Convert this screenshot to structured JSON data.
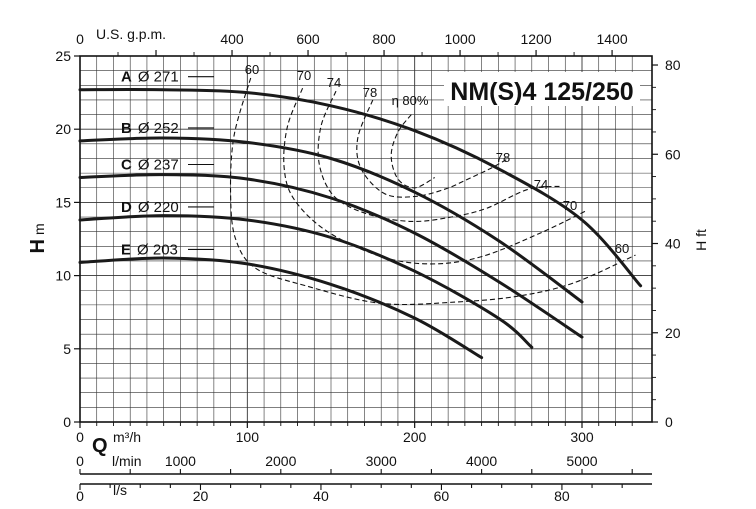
{
  "chart_data": {
    "type": "line",
    "title": "NM(S)4 125/250",
    "grid": true,
    "y_left": {
      "label": "H",
      "unit": "m",
      "ylim": [
        0,
        25
      ],
      "ticks": [
        0,
        5,
        10,
        15,
        20,
        25
      ]
    },
    "y_right": {
      "label": "H ft",
      "ticks": [
        0,
        20,
        40,
        60,
        80
      ]
    },
    "x_top": {
      "label": "U.S. g.p.m.",
      "ticks": [
        400,
        600,
        800,
        1000,
        1200,
        1400
      ]
    },
    "x_main": {
      "label": "Q",
      "unit": "m³/h",
      "xlim": [
        0,
        335
      ],
      "ticks": [
        0,
        100,
        200,
        300
      ]
    },
    "x_lmin": {
      "unit": "l/min",
      "ticks": [
        0,
        1000,
        2000,
        3000,
        4000,
        5000
      ]
    },
    "x_ls": {
      "unit": "l/s",
      "ticks": [
        0,
        20,
        40,
        60,
        80
      ]
    },
    "series": [
      {
        "name": "A",
        "diameter": "Ø 271",
        "x": [
          0,
          50,
          100,
          150,
          200,
          250,
          300,
          335
        ],
        "y": [
          22.7,
          22.7,
          22.5,
          21.6,
          19.9,
          17.3,
          13.8,
          9.3
        ]
      },
      {
        "name": "B",
        "diameter": "Ø 252",
        "x": [
          0,
          50,
          100,
          150,
          200,
          250,
          300
        ],
        "y": [
          19.2,
          19.4,
          19.1,
          18.0,
          15.7,
          12.4,
          8.2
        ]
      },
      {
        "name": "C",
        "diameter": "Ø 237",
        "x": [
          0,
          50,
          100,
          150,
          200,
          250,
          300
        ],
        "y": [
          16.7,
          16.9,
          16.6,
          15.3,
          12.9,
          9.6,
          5.8
        ]
      },
      {
        "name": "D",
        "diameter": "Ø 220",
        "x": [
          0,
          50,
          100,
          150,
          200,
          250,
          270
        ],
        "y": [
          13.8,
          14.1,
          13.8,
          12.6,
          10.3,
          7.1,
          5.1
        ]
      },
      {
        "name": "E",
        "diameter": "Ø 203",
        "x": [
          0,
          50,
          100,
          150,
          200,
          240
        ],
        "y": [
          10.9,
          11.2,
          10.8,
          9.4,
          7.1,
          4.4
        ]
      }
    ],
    "efficiency": [
      {
        "label": "60",
        "x": [
          102,
          92,
          90,
          93,
          105,
          135,
          180,
          225,
          262,
          295,
          332
        ],
        "y": [
          23.5,
          19.5,
          15.5,
          12.5,
          10.5,
          9.3,
          8.1,
          8.2,
          8.6,
          9.5,
          11.4
        ]
      },
      {
        "label": "70",
        "x": [
          133,
          124,
          122,
          128,
          148,
          180,
          210,
          240,
          275,
          302
        ],
        "y": [
          22.8,
          20.2,
          17.4,
          15.2,
          13.0,
          11.3,
          10.8,
          11.3,
          12.9,
          14.4
        ]
      },
      {
        "label": "74",
        "x": [
          153,
          144,
          143,
          152,
          172,
          198,
          222,
          243,
          268,
          288
        ],
        "y": [
          22.6,
          20.2,
          17.6,
          15.4,
          14.2,
          13.7,
          14.0,
          14.6,
          15.9,
          16.1
        ]
      },
      {
        "label": "78",
        "x": [
          175,
          166,
          168,
          182,
          200,
          218,
          232,
          245,
          256
        ],
        "y": [
          22.0,
          19.4,
          17.3,
          15.6,
          15.4,
          15.9,
          16.6,
          17.3,
          18.0
        ]
      },
      {
        "label": "η 80%",
        "x": [
          198,
          190,
          186,
          190,
          200,
          212
        ],
        "y": [
          21.0,
          19.8,
          18.2,
          16.6,
          16.0,
          16.7
        ]
      }
    ]
  }
}
